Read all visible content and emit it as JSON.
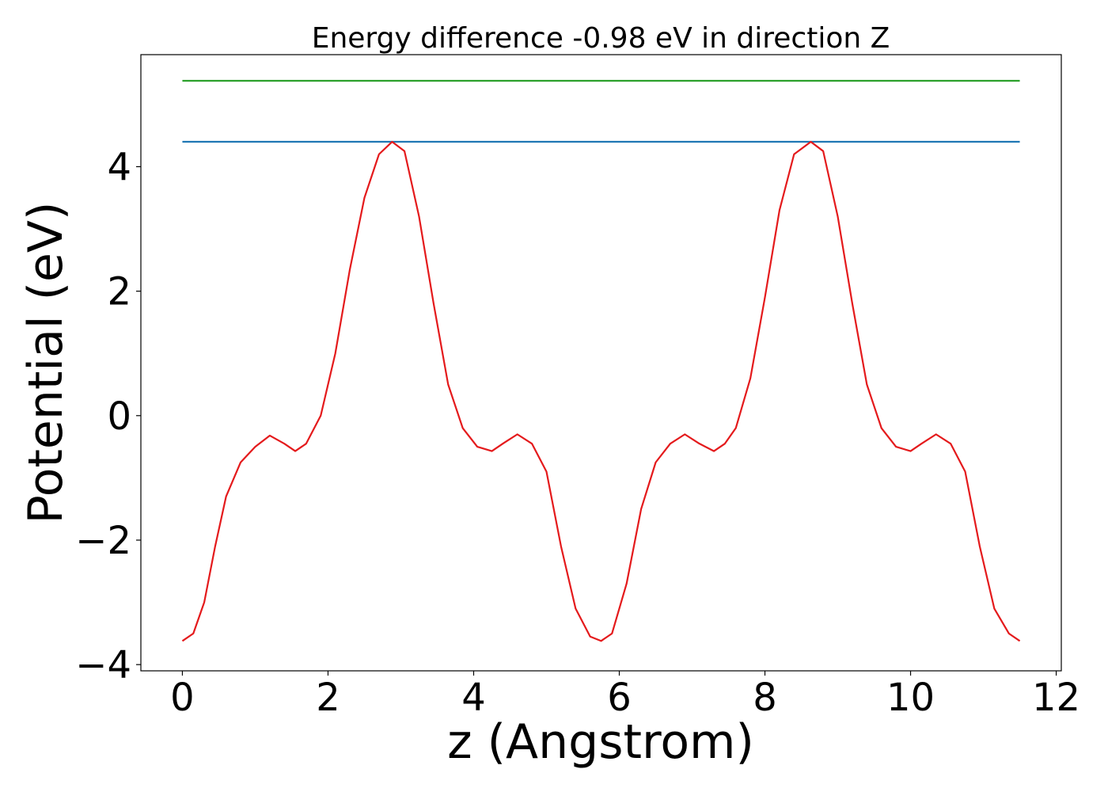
{
  "chart_data": {
    "type": "line",
    "title": "Energy difference -0.98 eV in direction Z",
    "xlabel": "z (Angstrom)",
    "ylabel": "Potential (eV)",
    "xlim": [
      -0.57,
      12.07
    ],
    "ylim": [
      -4.1,
      5.8
    ],
    "xticks": [
      0,
      2,
      4,
      6,
      8,
      10,
      12
    ],
    "yticks": [
      -4,
      -2,
      0,
      2,
      4
    ],
    "xtick_labels": [
      "0",
      "2",
      "4",
      "6",
      "8",
      "10",
      "12"
    ],
    "ytick_labels": [
      "−4",
      "−2",
      "0",
      "2",
      "4"
    ],
    "grid": false,
    "series": [
      {
        "color": "#2ca02c",
        "x": [
          0,
          11.5
        ],
        "y": [
          5.38,
          5.38
        ]
      },
      {
        "color": "#1f77b4",
        "x": [
          0,
          11.5
        ],
        "y": [
          4.4,
          4.4
        ]
      },
      {
        "color": "#e41a1c",
        "x": [
          0,
          0.15,
          0.3,
          0.45,
          0.6,
          0.8,
          1.0,
          1.2,
          1.4,
          1.55,
          1.7,
          1.9,
          2.1,
          2.3,
          2.5,
          2.7,
          2.88,
          3.05,
          3.25,
          3.45,
          3.65,
          3.85,
          4.05,
          4.25,
          4.4,
          4.6,
          4.8,
          5.0,
          5.2,
          5.4,
          5.6,
          5.75,
          5.9,
          6.1,
          6.3,
          6.5,
          6.7,
          6.9,
          7.1,
          7.3,
          7.45,
          7.6,
          7.8,
          8.0,
          8.2,
          8.4,
          8.63,
          8.8,
          9.0,
          9.2,
          9.4,
          9.6,
          9.8,
          10.0,
          10.15,
          10.35,
          10.55,
          10.75,
          10.95,
          11.15,
          11.35,
          11.5
        ],
        "y": [
          -3.62,
          -3.5,
          -3.0,
          -2.1,
          -1.3,
          -0.75,
          -0.5,
          -0.32,
          -0.45,
          -0.57,
          -0.45,
          0.0,
          1.0,
          2.35,
          3.5,
          4.2,
          4.4,
          4.25,
          3.2,
          1.8,
          0.5,
          -0.2,
          -0.5,
          -0.57,
          -0.45,
          -0.3,
          -0.45,
          -0.9,
          -2.1,
          -3.1,
          -3.55,
          -3.62,
          -3.5,
          -2.7,
          -1.5,
          -0.75,
          -0.45,
          -0.3,
          -0.45,
          -0.57,
          -0.45,
          -0.2,
          0.6,
          1.9,
          3.3,
          4.2,
          4.4,
          4.25,
          3.2,
          1.8,
          0.5,
          -0.2,
          -0.5,
          -0.57,
          -0.45,
          -0.3,
          -0.45,
          -0.9,
          -2.1,
          -3.1,
          -3.5,
          -3.62
        ]
      }
    ]
  }
}
